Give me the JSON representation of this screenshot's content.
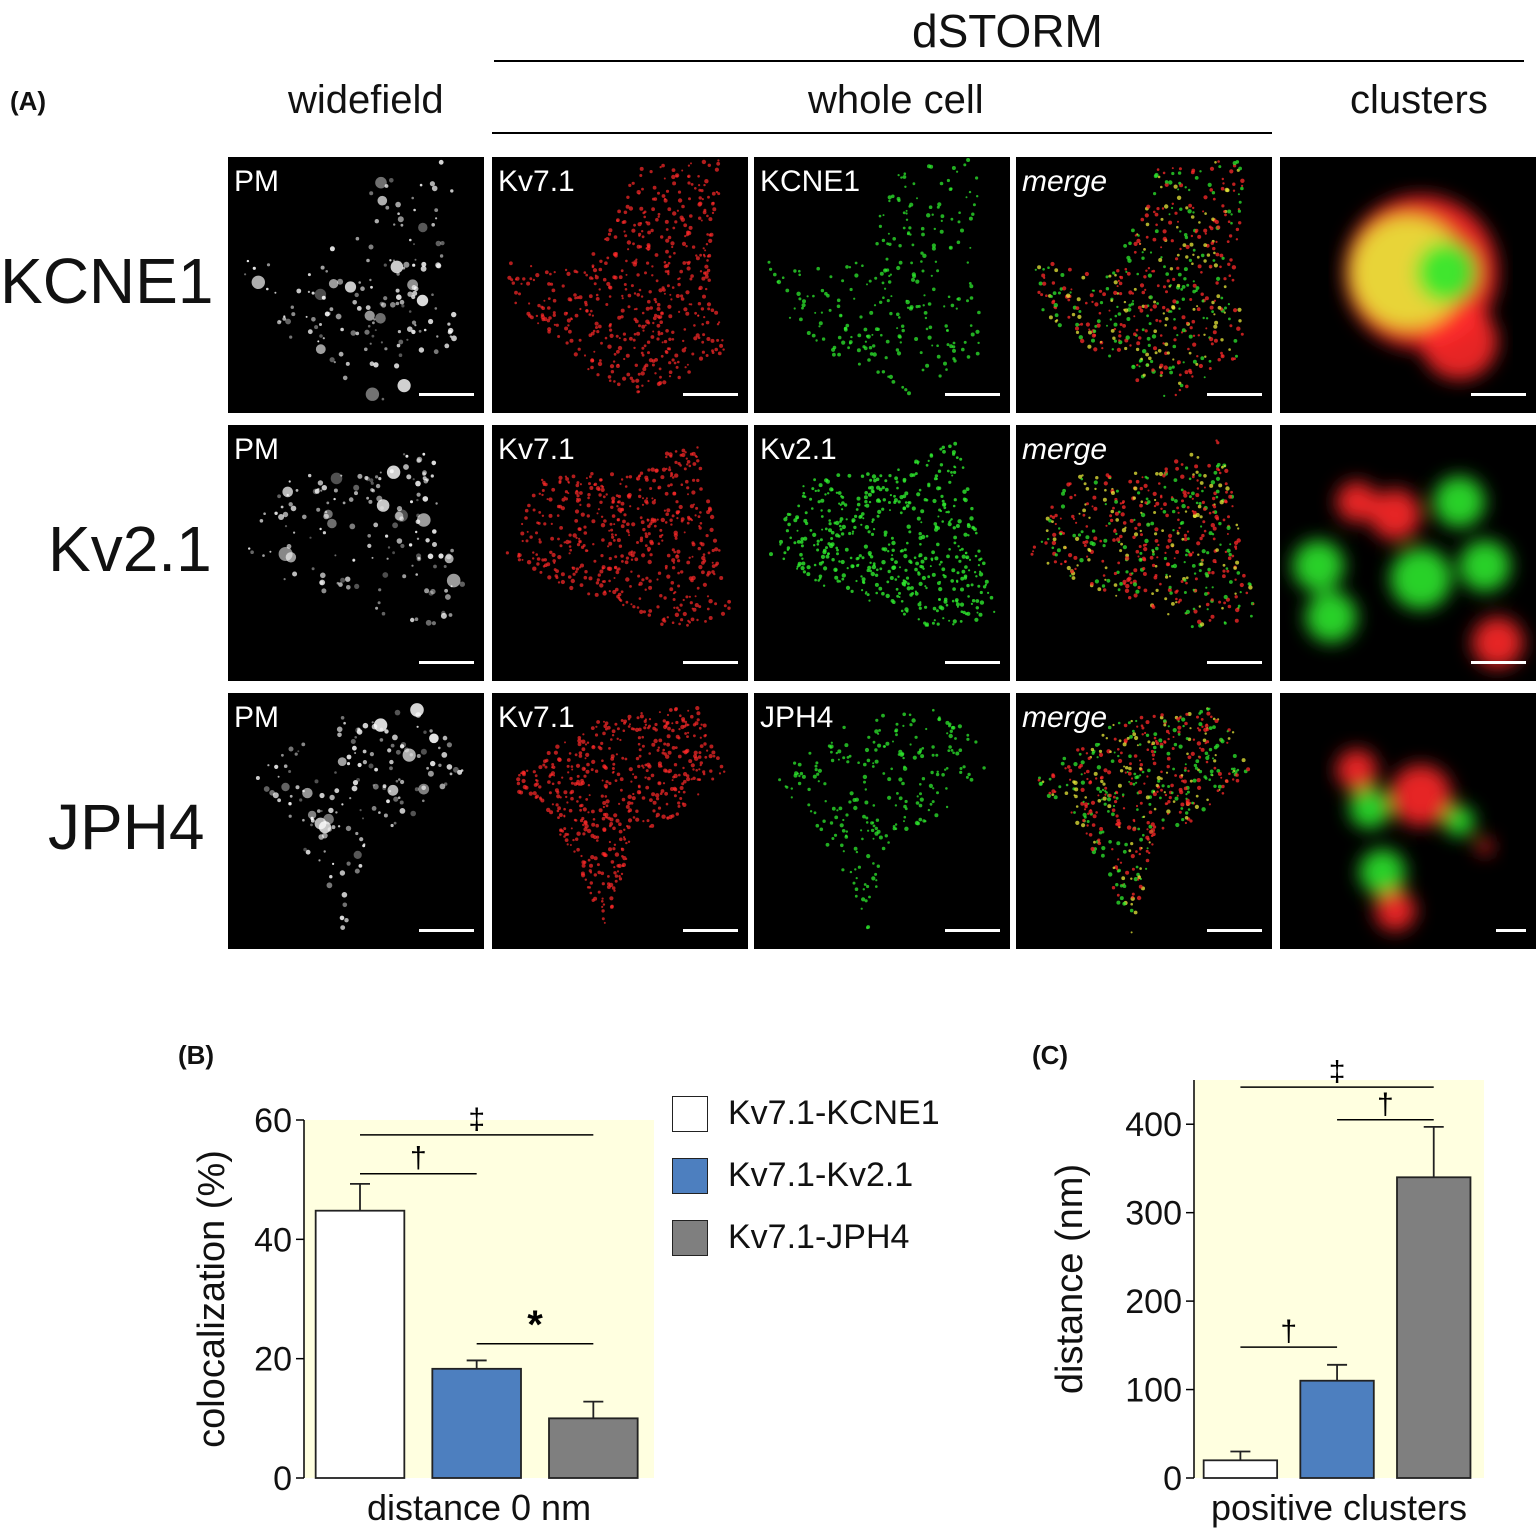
{
  "panel_a": {
    "label": "(A)",
    "header_dstorm": "dSTORM",
    "header_widefield": "widefield",
    "header_whole_cell": "whole cell",
    "header_clusters": "clusters",
    "rows": [
      {
        "name": "KCNE1",
        "tiles": [
          "PM",
          "Kv7.1",
          "KCNE1",
          "merge",
          ""
        ]
      },
      {
        "name": "Kv2.1",
        "tiles": [
          "PM",
          "Kv7.1",
          "Kv2.1",
          "merge",
          ""
        ]
      },
      {
        "name": "JPH4",
        "tiles": [
          "PM",
          "Kv7.1",
          "JPH4",
          "merge",
          ""
        ]
      }
    ],
    "colors": {
      "red": "#ff2a2a",
      "green": "#2ee82e",
      "yellow": "#e8e83a",
      "widefield": "#ffffff"
    }
  },
  "legend": [
    {
      "label": "Kv7.1-KCNE1",
      "color": "#ffffff"
    },
    {
      "label": "Kv7.1-Kv2.1",
      "color": "#4d7fbf"
    },
    {
      "label": "Kv7.1-JPH4",
      "color": "#7f7f7f"
    }
  ],
  "chart_data": [
    {
      "panel": "(B)",
      "type": "bar",
      "ylabel": "colocalization (%)",
      "xlabel": "distance 0 nm",
      "ylim": [
        0,
        60
      ],
      "yticks": [
        "0",
        "20",
        "40",
        "60"
      ],
      "background": "#ffffe0",
      "series": [
        {
          "name": "Kv7.1-KCNE1",
          "value": 44.8,
          "error": 4.5,
          "color": "#ffffff"
        },
        {
          "name": "Kv7.1-Kv2.1",
          "value": 18.3,
          "error": 1.4,
          "color": "#4d7fbf"
        },
        {
          "name": "Kv7.1-JPH4",
          "value": 10.0,
          "error": 2.8,
          "color": "#7f7f7f"
        }
      ],
      "significance": [
        {
          "from": 0,
          "to": 2,
          "symbol": "‡",
          "y": 57.5
        },
        {
          "from": 0,
          "to": 1,
          "symbol": "†",
          "y": 51.0
        },
        {
          "from": 1,
          "to": 2,
          "symbol": "*",
          "y": 22.5
        }
      ]
    },
    {
      "panel": "(C)",
      "type": "bar",
      "ylabel": "distance (nm)",
      "xlabel": "positive clusters",
      "ylim": [
        0,
        450
      ],
      "yticks": [
        "0",
        "100",
        "200",
        "300",
        "400"
      ],
      "background": "#ffffe0",
      "series": [
        {
          "name": "Kv7.1-KCNE1",
          "value": 20,
          "error": 10,
          "color": "#ffffff"
        },
        {
          "name": "Kv7.1-Kv2.1",
          "value": 110,
          "error": 18,
          "color": "#4d7fbf"
        },
        {
          "name": "Kv7.1-JPH4",
          "value": 340,
          "error": 57,
          "color": "#7f7f7f"
        }
      ],
      "significance": [
        {
          "from": 0,
          "to": 2,
          "symbol": "‡",
          "y": 442
        },
        {
          "from": 1,
          "to": 2,
          "symbol": "†",
          "y": 405
        },
        {
          "from": 0,
          "to": 1,
          "symbol": "†",
          "y": 148
        }
      ]
    }
  ]
}
